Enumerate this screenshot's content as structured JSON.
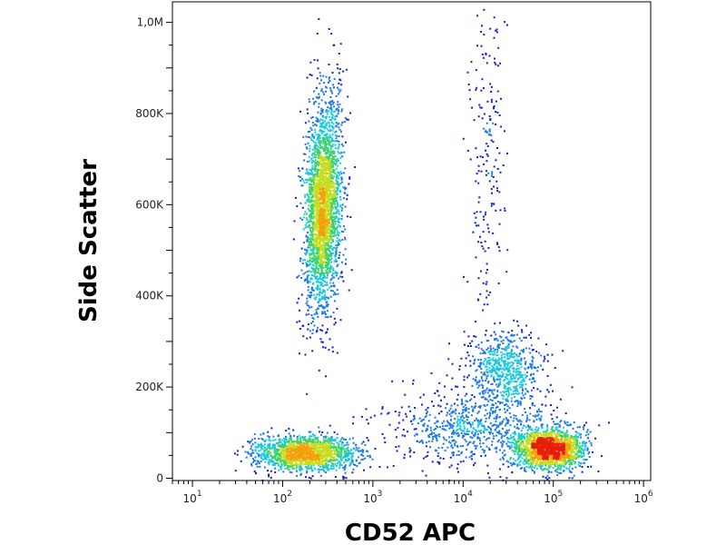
{
  "chart_data": {
    "type": "scatter",
    "subtype": "flow-cytometry-density-dot-plot",
    "title": "",
    "xlabel": "CD52 APC",
    "ylabel": "Side Scatter",
    "x_scale": "log",
    "xlim": [
      6,
      1200000
    ],
    "ylim": [
      -5000,
      1045000
    ],
    "x_ticks": [
      {
        "value": 10,
        "base": "10",
        "exp": "1"
      },
      {
        "value": 100,
        "base": "10",
        "exp": "2"
      },
      {
        "value": 1000,
        "base": "10",
        "exp": "3"
      },
      {
        "value": 10000,
        "base": "10",
        "exp": "4"
      },
      {
        "value": 100000,
        "base": "10",
        "exp": "5"
      },
      {
        "value": 1000000,
        "base": "10",
        "exp": "6"
      }
    ],
    "y_ticks": [
      {
        "value": 0,
        "label": "0"
      },
      {
        "value": 200000,
        "label": "200K"
      },
      {
        "value": 400000,
        "label": "400K"
      },
      {
        "value": 600000,
        "label": "600K"
      },
      {
        "value": 800000,
        "label": "800K"
      },
      {
        "value": 1000000,
        "label": "1,0M"
      }
    ],
    "colormap": [
      "#1020c8",
      "#1b78e6",
      "#19c8dc",
      "#3ad26a",
      "#c8dc1e",
      "#f5a00a",
      "#e61e0a"
    ],
    "populations": [
      {
        "name": "granulocytes",
        "center_x": 280,
        "center_y": 600000,
        "spread_log_x": 0.1,
        "spread_y": 120000,
        "tilt": 250000,
        "count": 2600
      },
      {
        "name": "lymphocytes",
        "center_x": 180,
        "center_y": 55000,
        "spread_log_x": 0.28,
        "spread_y": 20000,
        "count": 1500
      },
      {
        "name": "monocytes_cd52_high",
        "center_x": 90000,
        "center_y": 65000,
        "spread_log_x": 0.2,
        "spread_y": 22000,
        "count": 1700
      },
      {
        "name": "cd52_intermediate_bridge",
        "center_x": 12000,
        "center_y": 110000,
        "spread_log_x": 0.45,
        "spread_y": 40000,
        "count": 700
      },
      {
        "name": "cd52_high_ssc_mid",
        "center_x": 30000,
        "center_y": 240000,
        "spread_log_x": 0.22,
        "spread_y": 45000,
        "count": 650
      },
      {
        "name": "cd52_high_ssc_high_sparse",
        "center_x": 18000,
        "center_y": 700000,
        "spread_log_x": 0.1,
        "spread_y": 200000,
        "count": 200
      }
    ]
  }
}
